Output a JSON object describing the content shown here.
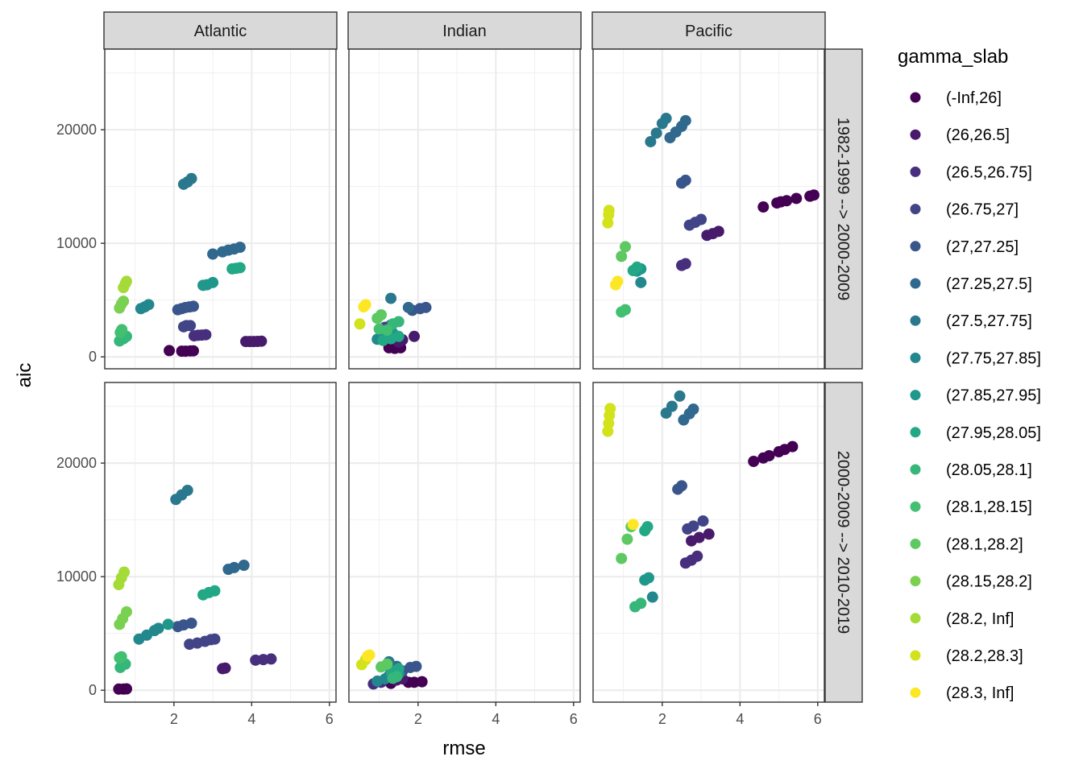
{
  "chart_data": {
    "type": "scatter",
    "title": "",
    "xlabel": "rmse",
    "ylabel": "aic",
    "xlim": [
      0.22,
      6.17
    ],
    "ylim": [
      -1050,
      27100
    ],
    "x_ticks": [
      2,
      4,
      6
    ],
    "y_ticks": [
      0,
      10000,
      20000
    ],
    "y_tick_labels": [
      "0",
      "10000",
      "20000"
    ],
    "grid": true,
    "facet_cols": [
      "Atlantic",
      "Indian",
      "Pacific"
    ],
    "facet_rows": [
      "1982-1999 --> 2000-2009",
      "2000-2009 --> 2010-2019"
    ],
    "legend": {
      "title": "gamma_slab",
      "placement": "right",
      "entries": [
        {
          "label": "(-Inf,26]",
          "color": "#440154"
        },
        {
          "label": "(26,26.5]",
          "color": "#481A6C"
        },
        {
          "label": "(26.5,26.75]",
          "color": "#472F7D"
        },
        {
          "label": "(26.75,27]",
          "color": "#414487"
        },
        {
          "label": "(27,27.25]",
          "color": "#39568C"
        },
        {
          "label": "(27.25,27.5]",
          "color": "#31688E"
        },
        {
          "label": "(27.5,27.75]",
          "color": "#2A788E"
        },
        {
          "label": "(27.75,27.85]",
          "color": "#23888E"
        },
        {
          "label": "(27.85,27.95]",
          "color": "#1F988B"
        },
        {
          "label": "(27.95,28.05]",
          "color": "#22A884"
        },
        {
          "label": "(28.05,28.1]",
          "color": "#35B779"
        },
        {
          "label": "(28.1,28.15]",
          "color": "#43BF71"
        },
        {
          "label": "(28.1,28.2]",
          "color": "#5EC962"
        },
        {
          "label": "(28.15,28.2]",
          "color": "#7AD151"
        },
        {
          "label": "(28.2, Inf]",
          "color": "#A5DB36"
        },
        {
          "label": "(28.2,28.3]",
          "color": "#D2E21B"
        },
        {
          "label": "(28.3, Inf]",
          "color": "#FDE725"
        }
      ]
    },
    "panels": [
      {
        "col": "Atlantic",
        "row": "1982-1999 --> 2000-2009",
        "points": [
          [
            0,
            1.88,
            550
          ],
          [
            0,
            2.2,
            500
          ],
          [
            0,
            2.3,
            500
          ],
          [
            0,
            2.42,
            520
          ],
          [
            0,
            2.5,
            530
          ],
          [
            1,
            3.85,
            1350
          ],
          [
            1,
            3.95,
            1350
          ],
          [
            1,
            4.05,
            1350
          ],
          [
            1,
            4.15,
            1360
          ],
          [
            1,
            4.25,
            1380
          ],
          [
            2,
            2.52,
            1850
          ],
          [
            2,
            2.62,
            1900
          ],
          [
            2,
            2.72,
            1920
          ],
          [
            2,
            2.82,
            1950
          ],
          [
            3,
            2.25,
            2650
          ],
          [
            3,
            2.32,
            2750
          ],
          [
            3,
            2.42,
            2750
          ],
          [
            4,
            2.1,
            4150
          ],
          [
            4,
            2.2,
            4250
          ],
          [
            4,
            2.3,
            4350
          ],
          [
            4,
            2.4,
            4400
          ],
          [
            4,
            2.5,
            4450
          ],
          [
            5,
            3.0,
            9050
          ],
          [
            5,
            3.25,
            9250
          ],
          [
            5,
            3.4,
            9400
          ],
          [
            5,
            3.55,
            9500
          ],
          [
            5,
            3.7,
            9650
          ],
          [
            6,
            2.25,
            15200
          ],
          [
            6,
            2.35,
            15400
          ],
          [
            6,
            2.45,
            15700
          ],
          [
            7,
            1.15,
            4250
          ],
          [
            7,
            1.25,
            4400
          ],
          [
            7,
            1.35,
            4600
          ],
          [
            8,
            2.75,
            6300
          ],
          [
            8,
            2.85,
            6350
          ],
          [
            8,
            3.0,
            6550
          ],
          [
            9,
            3.5,
            7750
          ],
          [
            9,
            3.6,
            7800
          ],
          [
            9,
            3.7,
            7850
          ],
          [
            10,
            0.6,
            1400
          ],
          [
            10,
            0.7,
            1600
          ],
          [
            10,
            0.78,
            1800
          ],
          [
            11,
            0.62,
            2150
          ],
          [
            11,
            0.66,
            2400
          ],
          [
            13,
            0.6,
            4300
          ],
          [
            13,
            0.65,
            4650
          ],
          [
            13,
            0.7,
            4900
          ],
          [
            14,
            0.7,
            6100
          ],
          [
            14,
            0.75,
            6450
          ],
          [
            14,
            0.78,
            6650
          ]
        ]
      },
      {
        "col": "Indian",
        "row": "1982-1999 --> 2000-2009",
        "points": [
          [
            0,
            1.25,
            800
          ],
          [
            0,
            1.4,
            750
          ],
          [
            0,
            1.55,
            800
          ],
          [
            1,
            1.5,
            1300
          ],
          [
            1,
            1.6,
            1500
          ],
          [
            1,
            1.9,
            1800
          ],
          [
            2,
            1.05,
            2250
          ],
          [
            2,
            1.2,
            2500
          ],
          [
            3,
            1.15,
            2600
          ],
          [
            3,
            1.3,
            2800
          ],
          [
            4,
            1.85,
            4100
          ],
          [
            4,
            2.05,
            4250
          ],
          [
            4,
            2.2,
            4350
          ],
          [
            5,
            1.75,
            4350
          ],
          [
            6,
            1.3,
            5150
          ],
          [
            7,
            0.95,
            1550
          ],
          [
            7,
            1.25,
            1900
          ],
          [
            8,
            1.2,
            2000
          ],
          [
            8,
            1.35,
            2100
          ],
          [
            9,
            1.1,
            1450
          ],
          [
            9,
            1.3,
            1600
          ],
          [
            9,
            1.5,
            1800
          ],
          [
            10,
            1.35,
            2900
          ],
          [
            10,
            1.5,
            3100
          ],
          [
            11,
            1.0,
            2450
          ],
          [
            11,
            1.2,
            2350
          ],
          [
            12,
            0.95,
            3400
          ],
          [
            12,
            1.05,
            3700
          ],
          [
            15,
            0.5,
            2900
          ],
          [
            16,
            0.6,
            4400
          ],
          [
            16,
            0.65,
            4600
          ]
        ]
      },
      {
        "col": "Pacific",
        "row": "1982-1999 --> 2000-2009",
        "points": [
          [
            0,
            4.6,
            13200
          ],
          [
            0,
            4.95,
            13550
          ],
          [
            0,
            5.05,
            13650
          ],
          [
            0,
            5.2,
            13750
          ],
          [
            0,
            5.45,
            13950
          ],
          [
            0,
            5.8,
            14150
          ],
          [
            0,
            5.9,
            14250
          ],
          [
            1,
            3.15,
            10700
          ],
          [
            1,
            3.3,
            10850
          ],
          [
            1,
            3.45,
            11050
          ],
          [
            2,
            2.5,
            8050
          ],
          [
            2,
            2.6,
            8200
          ],
          [
            3,
            2.7,
            11600
          ],
          [
            3,
            2.85,
            11850
          ],
          [
            3,
            3.0,
            12100
          ],
          [
            4,
            2.5,
            15300
          ],
          [
            4,
            2.6,
            15550
          ],
          [
            5,
            2.2,
            19300
          ],
          [
            5,
            2.35,
            19800
          ],
          [
            5,
            2.5,
            20300
          ],
          [
            5,
            2.6,
            20800
          ],
          [
            6,
            1.7,
            18950
          ],
          [
            6,
            1.85,
            19700
          ],
          [
            6,
            2.0,
            20550
          ],
          [
            6,
            2.1,
            21000
          ],
          [
            7,
            1.45,
            6550
          ],
          [
            8,
            1.35,
            7550
          ],
          [
            8,
            1.45,
            7750
          ],
          [
            9,
            1.25,
            7600
          ],
          [
            9,
            1.35,
            7900
          ],
          [
            11,
            0.95,
            3950
          ],
          [
            11,
            1.05,
            4150
          ],
          [
            12,
            0.95,
            8850
          ],
          [
            12,
            1.05,
            9700
          ],
          [
            15,
            0.6,
            11800
          ],
          [
            15,
            0.62,
            12500
          ],
          [
            15,
            0.63,
            12900
          ],
          [
            16,
            0.8,
            6350
          ],
          [
            16,
            0.85,
            6650
          ]
        ]
      },
      {
        "col": "Atlantic",
        "row": "2000-2009 --> 2010-2019",
        "points": [
          [
            0,
            0.58,
            100
          ],
          [
            0,
            0.7,
            100
          ],
          [
            0,
            0.78,
            120
          ],
          [
            1,
            3.25,
            1900
          ],
          [
            1,
            3.32,
            1950
          ],
          [
            2,
            4.1,
            2650
          ],
          [
            2,
            4.3,
            2700
          ],
          [
            2,
            4.5,
            2750
          ],
          [
            3,
            2.4,
            4050
          ],
          [
            3,
            2.6,
            4150
          ],
          [
            3,
            2.8,
            4300
          ],
          [
            3,
            2.95,
            4450
          ],
          [
            3,
            3.05,
            4500
          ],
          [
            4,
            2.1,
            5600
          ],
          [
            4,
            2.25,
            5750
          ],
          [
            4,
            2.45,
            5900
          ],
          [
            5,
            3.4,
            10650
          ],
          [
            5,
            3.55,
            10800
          ],
          [
            5,
            3.8,
            11000
          ],
          [
            6,
            2.05,
            16800
          ],
          [
            6,
            2.2,
            17200
          ],
          [
            6,
            2.35,
            17600
          ],
          [
            7,
            1.1,
            4500
          ],
          [
            7,
            1.3,
            4850
          ],
          [
            7,
            1.5,
            5250
          ],
          [
            7,
            1.6,
            5450
          ],
          [
            8,
            1.85,
            5800
          ],
          [
            9,
            2.75,
            8400
          ],
          [
            9,
            2.9,
            8600
          ],
          [
            9,
            3.05,
            8750
          ],
          [
            10,
            0.62,
            2000
          ],
          [
            10,
            0.75,
            2300
          ],
          [
            11,
            0.6,
            2850
          ],
          [
            11,
            0.65,
            2950
          ],
          [
            13,
            0.6,
            5800
          ],
          [
            13,
            0.68,
            6300
          ],
          [
            13,
            0.78,
            6900
          ],
          [
            14,
            0.58,
            9300
          ],
          [
            14,
            0.65,
            9900
          ],
          [
            14,
            0.72,
            10400
          ]
        ]
      },
      {
        "col": "Indian",
        "row": "2000-2009 --> 2010-2019",
        "points": [
          [
            0,
            1.3,
            600
          ],
          [
            0,
            1.75,
            700
          ],
          [
            0,
            1.9,
            700
          ],
          [
            0,
            2.1,
            750
          ],
          [
            1,
            1.45,
            900
          ],
          [
            1,
            1.6,
            1000
          ],
          [
            2,
            0.85,
            550
          ],
          [
            2,
            1.05,
            700
          ],
          [
            3,
            1.25,
            1250
          ],
          [
            3,
            1.4,
            1500
          ],
          [
            4,
            1.6,
            1700
          ],
          [
            4,
            1.8,
            2000
          ],
          [
            4,
            1.95,
            2100
          ],
          [
            5,
            1.45,
            2100
          ],
          [
            6,
            1.25,
            2500
          ],
          [
            7,
            0.95,
            800
          ],
          [
            7,
            1.15,
            1000
          ],
          [
            8,
            1.35,
            1300
          ],
          [
            8,
            1.5,
            1450
          ],
          [
            9,
            1.3,
            1700
          ],
          [
            9,
            1.5,
            1900
          ],
          [
            10,
            1.35,
            1050
          ],
          [
            10,
            1.45,
            1200
          ],
          [
            12,
            1.05,
            2050
          ],
          [
            12,
            1.2,
            2300
          ],
          [
            15,
            0.55,
            2250
          ],
          [
            15,
            0.65,
            2700
          ],
          [
            16,
            0.7,
            3000
          ],
          [
            16,
            0.75,
            3100
          ]
        ]
      },
      {
        "col": "Pacific",
        "row": "2000-2009 --> 2010-2019",
        "points": [
          [
            0,
            4.35,
            20150
          ],
          [
            0,
            4.6,
            20450
          ],
          [
            0,
            4.75,
            20650
          ],
          [
            0,
            5.0,
            21000
          ],
          [
            0,
            5.15,
            21200
          ],
          [
            0,
            5.35,
            21450
          ],
          [
            1,
            2.75,
            13150
          ],
          [
            1,
            2.95,
            13450
          ],
          [
            1,
            3.2,
            13750
          ],
          [
            2,
            2.6,
            11200
          ],
          [
            2,
            2.75,
            11450
          ],
          [
            2,
            2.9,
            11800
          ],
          [
            3,
            2.65,
            14200
          ],
          [
            3,
            2.8,
            14450
          ],
          [
            3,
            3.05,
            14900
          ],
          [
            4,
            2.4,
            17700
          ],
          [
            4,
            2.5,
            18000
          ],
          [
            5,
            2.55,
            23800
          ],
          [
            5,
            2.7,
            24350
          ],
          [
            5,
            2.8,
            24750
          ],
          [
            6,
            2.1,
            24400
          ],
          [
            6,
            2.25,
            25000
          ],
          [
            6,
            2.45,
            25900
          ],
          [
            7,
            1.75,
            8200
          ],
          [
            8,
            1.55,
            9700
          ],
          [
            8,
            1.65,
            9900
          ],
          [
            9,
            1.55,
            14050
          ],
          [
            9,
            1.62,
            14400
          ],
          [
            10,
            1.3,
            7350
          ],
          [
            10,
            1.45,
            7650
          ],
          [
            12,
            0.95,
            11600
          ],
          [
            12,
            1.1,
            13300
          ],
          [
            12,
            1.2,
            14400
          ],
          [
            15,
            0.6,
            22800
          ],
          [
            15,
            0.62,
            23500
          ],
          [
            15,
            0.64,
            24200
          ],
          [
            15,
            0.66,
            24800
          ],
          [
            16,
            1.25,
            14600
          ]
        ]
      }
    ]
  }
}
